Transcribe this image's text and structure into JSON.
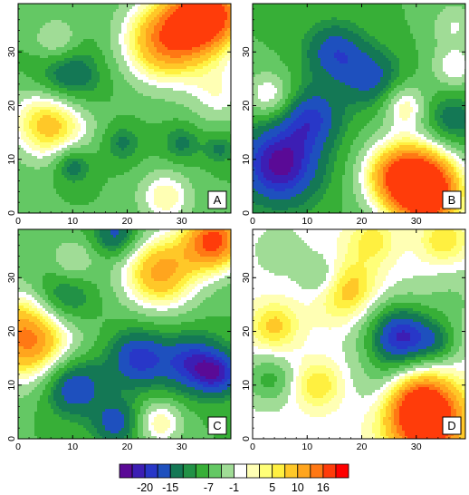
{
  "chart_data": {
    "type": "heatmap",
    "title": "",
    "xlim": [
      0,
      39
    ],
    "ylim": [
      0,
      39
    ],
    "x_ticks": [
      0,
      10,
      20,
      30
    ],
    "y_ticks": [
      0,
      10,
      20,
      30
    ],
    "levels": [
      -22,
      -20,
      -18,
      -15,
      -12,
      -10,
      -7,
      -4,
      -1,
      1,
      3,
      5,
      7,
      10,
      13,
      16
    ],
    "colorbar": {
      "colors": [
        "#5a0a96",
        "#3c1eb4",
        "#2837c8",
        "#1e50be",
        "#147855",
        "#229246",
        "#37af37",
        "#64c864",
        "#a0dc96",
        "#ffffff",
        "#ffffb4",
        "#ffff78",
        "#fff040",
        "#ffc828",
        "#ffa51e",
        "#ff7814",
        "#ff3c0a",
        "#ff0000"
      ],
      "labels": [
        {
          "value": -20,
          "text": "-20"
        },
        {
          "value": -15,
          "text": "-15"
        },
        {
          "value": -7,
          "text": "-7"
        },
        {
          "value": -1,
          "text": "-1"
        },
        {
          "value": 5,
          "text": "5"
        },
        {
          "value": 10,
          "text": "10"
        },
        {
          "value": 16,
          "text": "16"
        }
      ]
    },
    "panels": [
      {
        "label": "A",
        "base": -7,
        "features": [
          {
            "x": 35,
            "y": 37,
            "amp": 26,
            "r": 5
          },
          {
            "x": 27,
            "y": 32,
            "amp": 20,
            "r": 5.5
          },
          {
            "x": 6,
            "y": 17,
            "amp": 17,
            "r": 5
          },
          {
            "x": 7,
            "y": 32,
            "amp": 8,
            "r": 3
          },
          {
            "x": 27,
            "y": 3,
            "amp": 10,
            "r": 3.5
          },
          {
            "x": 37,
            "y": 22,
            "amp": 7,
            "r": 4
          },
          {
            "x": 9,
            "y": 25,
            "amp": -11,
            "r": 4.5
          },
          {
            "x": 10,
            "y": 9,
            "amp": -9,
            "r": 2.5
          },
          {
            "x": 19,
            "y": 13,
            "amp": -6,
            "r": 2.5
          },
          {
            "x": 30,
            "y": 13,
            "amp": -6,
            "r": 2.5
          },
          {
            "x": 37,
            "y": 12,
            "amp": -6,
            "r": 2
          }
        ]
      },
      {
        "label": "B",
        "base": -7,
        "features": [
          {
            "x": 32,
            "y": 3,
            "amp": 24,
            "r": 5
          },
          {
            "x": 30,
            "y": 8,
            "amp": 14,
            "r": 5
          },
          {
            "x": 25,
            "y": 7,
            "amp": 10,
            "r": 4
          },
          {
            "x": 28,
            "y": 20,
            "amp": 10,
            "r": 3
          },
          {
            "x": 3,
            "y": 22,
            "amp": 9,
            "r": 3
          },
          {
            "x": 37,
            "y": 27,
            "amp": 8,
            "r": 3
          },
          {
            "x": 37,
            "y": 35,
            "amp": 6,
            "r": 3
          },
          {
            "x": 5,
            "y": 9,
            "amp": -16,
            "r": 5.5
          },
          {
            "x": 11,
            "y": 18,
            "amp": -10,
            "r": 4
          },
          {
            "x": 15,
            "y": 30,
            "amp": -10,
            "r": 4
          },
          {
            "x": 22,
            "y": 25,
            "amp": -9,
            "r": 4
          },
          {
            "x": 36,
            "y": 17,
            "amp": -8,
            "r": 4
          }
        ]
      },
      {
        "label": "C",
        "base": -7,
        "features": [
          {
            "x": 36,
            "y": 37,
            "amp": 24,
            "r": 4
          },
          {
            "x": 26,
            "y": 31,
            "amp": 18,
            "r": 5
          },
          {
            "x": 2,
            "y": 19,
            "amp": 22,
            "r": 6
          },
          {
            "x": 10,
            "y": 33,
            "amp": 7,
            "r": 3
          },
          {
            "x": 26,
            "y": 3,
            "amp": 10,
            "r": 3
          },
          {
            "x": 8,
            "y": 26,
            "amp": -11,
            "r": 4
          },
          {
            "x": 10,
            "y": 10,
            "amp": -13,
            "r": 4
          },
          {
            "x": 22,
            "y": 15,
            "amp": -12,
            "r": 4
          },
          {
            "x": 32,
            "y": 14,
            "amp": -12,
            "r": 4
          },
          {
            "x": 37,
            "y": 12,
            "amp": -10,
            "r": 3
          },
          {
            "x": 18,
            "y": 38,
            "amp": -10,
            "r": 3
          },
          {
            "x": 18,
            "y": 3,
            "amp": -10,
            "r": 3
          }
        ]
      },
      {
        "label": "D",
        "base": 0,
        "features": [
          {
            "x": 32,
            "y": 3,
            "amp": 22,
            "r": 5
          },
          {
            "x": 30,
            "y": 8,
            "amp": 10,
            "r": 4
          },
          {
            "x": 17,
            "y": 28,
            "amp": 10,
            "r": 4
          },
          {
            "x": 4,
            "y": 21,
            "amp": 8,
            "r": 3
          },
          {
            "x": 12,
            "y": 10,
            "amp": 7,
            "r": 3
          },
          {
            "x": 22,
            "y": 37,
            "amp": 6,
            "r": 3
          },
          {
            "x": 35,
            "y": 37,
            "amp": 7,
            "r": 3
          },
          {
            "x": 27,
            "y": 19,
            "amp": -20,
            "r": 4.5
          },
          {
            "x": 34,
            "y": 18,
            "amp": -8,
            "r": 3
          },
          {
            "x": 13,
            "y": 30,
            "amp": -7,
            "r": 3
          },
          {
            "x": 3,
            "y": 11,
            "amp": -8,
            "r": 3
          },
          {
            "x": 37,
            "y": 26,
            "amp": -4,
            "r": 4
          },
          {
            "x": 24,
            "y": 10,
            "amp": -4,
            "r": 4
          },
          {
            "x": 5,
            "y": 35,
            "amp": -3,
            "r": 3
          }
        ]
      }
    ]
  }
}
